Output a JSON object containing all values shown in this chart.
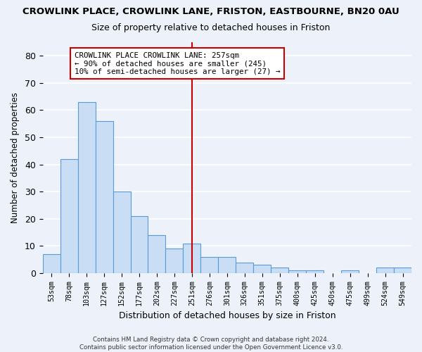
{
  "title": "CROWLINK PLACE, CROWLINK LANE, FRISTON, EASTBOURNE, BN20 0AU",
  "subtitle": "Size of property relative to detached houses in Friston",
  "xlabel": "Distribution of detached houses by size in Friston",
  "ylabel": "Number of detached properties",
  "bar_labels": [
    "53sqm",
    "78sqm",
    "103sqm",
    "127sqm",
    "152sqm",
    "177sqm",
    "202sqm",
    "227sqm",
    "251sqm",
    "276sqm",
    "301sqm",
    "326sqm",
    "351sqm",
    "375sqm",
    "400sqm",
    "425sqm",
    "450sqm",
    "475sqm",
    "499sqm",
    "524sqm",
    "549sqm"
  ],
  "bar_values": [
    7,
    42,
    63,
    56,
    30,
    21,
    14,
    9,
    11,
    6,
    6,
    4,
    3,
    2,
    1,
    1,
    0,
    1,
    0,
    2,
    2
  ],
  "bar_color": "#c9ddf5",
  "bar_edge_color": "#5b9bd5",
  "vline_color": "#cc0000",
  "vline_index": 8.0,
  "annotation_text": "CROWLINK PLACE CROWLINK LANE: 257sqm\n← 90% of detached houses are smaller (245)\n10% of semi-detached houses are larger (27) →",
  "annotation_box_color": "#ffffff",
  "annotation_box_edge": "#cc0000",
  "ylim": [
    0,
    85
  ],
  "yticks": [
    0,
    10,
    20,
    30,
    40,
    50,
    60,
    70,
    80
  ],
  "footer_text": "Contains HM Land Registry data © Crown copyright and database right 2024.\nContains public sector information licensed under the Open Government Licence v3.0.",
  "background_color": "#edf2fa",
  "grid_color": "#ffffff"
}
